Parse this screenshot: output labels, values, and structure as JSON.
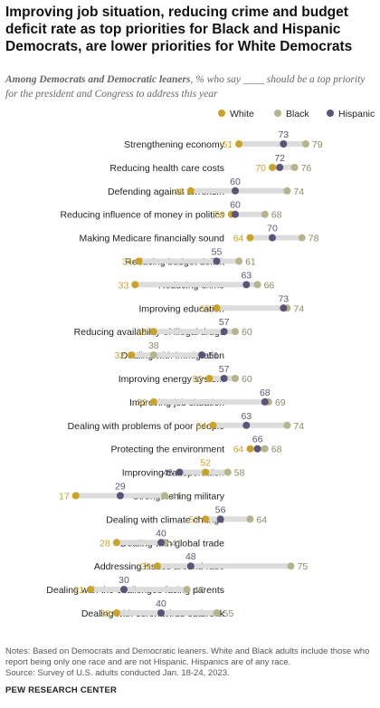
{
  "header": {
    "title": "Improving job situation, reducing crime and budget deficit rate as top priorities for Black and Hispanic Democrats, are lower priorities for White Democrats",
    "subtitle_lead": "Among Democrats and Democratic leaners",
    "subtitle_rest": ", % who say ____ should be a top priority for the president and Congress to address this year"
  },
  "colors": {
    "White": "#c9a227",
    "Black": "#b7b38a",
    "Hispanic": "#5b5478",
    "bar": "#dcdcdc",
    "white_label": "#c9a227",
    "black_label": "#8a8766",
    "hispanic_label": "#5b5478"
  },
  "chart_data": {
    "type": "dot",
    "xlim": [
      0,
      100
    ],
    "legend": {
      "placement": "top-right",
      "entries": [
        "White",
        "Black",
        "Hispanic"
      ]
    },
    "categories": [
      "Strengthening economy",
      "Reducing health care costs",
      "Defending against terrorism",
      "Reducing influence of money in politics",
      "Making Medicare financially sound",
      "Reducing budget deficit",
      "Reducing crime",
      "Improving education",
      "Reducing availability of illegal drugs",
      "Dealing with immigration",
      "Improving energy system",
      "Improving job situation",
      "Dealing with problems of poor people",
      "Protecting the environment",
      "Improving transportation",
      "Strengthening military",
      "Dealing with climate change",
      "Dealing with global trade",
      "Addressing issues around race",
      "Dealing with the challenges facing parents",
      "Dealing with coronavirus outbreak"
    ],
    "series": [
      {
        "name": "White",
        "values": [
          61,
          70,
          48,
          59,
          64,
          34,
          33,
          55,
          38,
          32,
          53,
          38,
          54,
          64,
          52,
          17,
          52,
          28,
          39,
          21,
          28
        ]
      },
      {
        "name": "Black",
        "values": [
          79,
          76,
          74,
          68,
          78,
          61,
          66,
          74,
          60,
          38,
          60,
          69,
          74,
          68,
          58,
          41,
          64,
          41,
          75,
          47,
          55
        ]
      },
      {
        "name": "Hispanic",
        "values": [
          73,
          72,
          60,
          60,
          70,
          55,
          63,
          73,
          57,
          51,
          57,
          68,
          63,
          66,
          45,
          29,
          56,
          40,
          48,
          30,
          40
        ]
      }
    ]
  },
  "notes": {
    "note": "Notes: Based on Democrats and Democratic leaners. White and Black adults include those who report being only one race and are not Hispanic. Hispanics are of any race.",
    "source": "Source: Survey of U.S. adults conducted Jan. 18-24, 2023."
  },
  "footer": "PEW RESEARCH CENTER"
}
